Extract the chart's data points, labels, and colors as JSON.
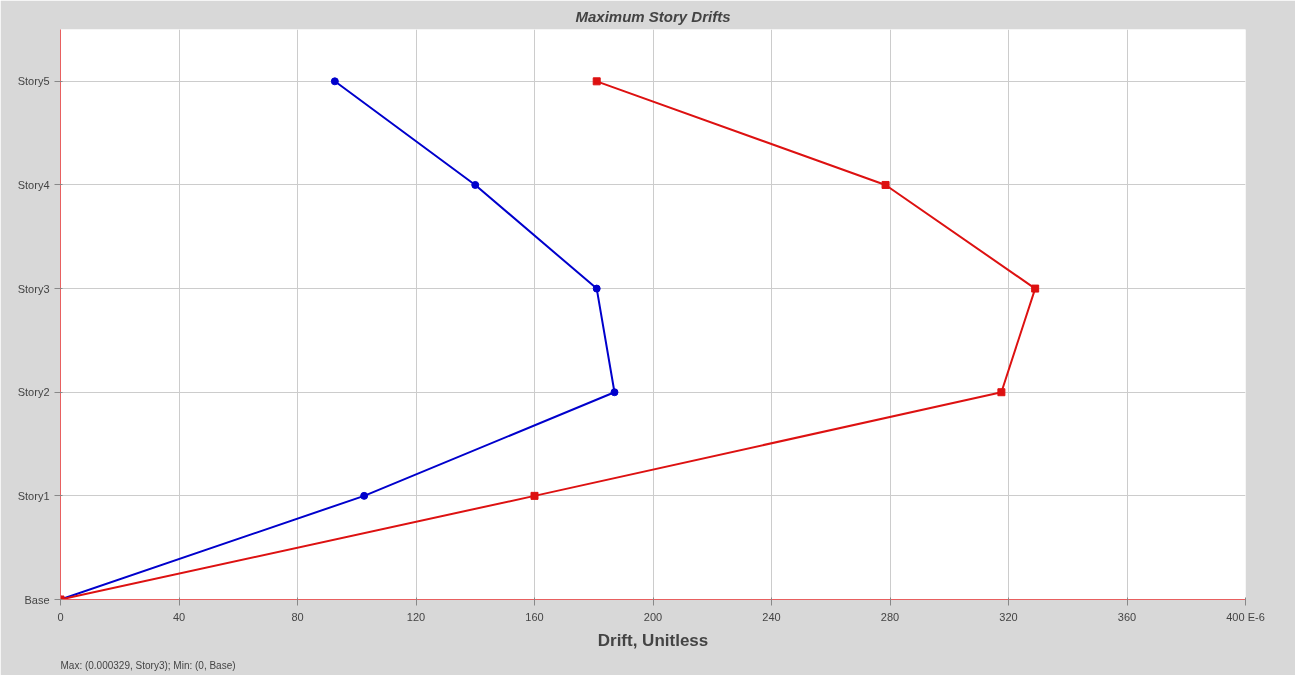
{
  "chart_data": {
    "type": "line",
    "title": "Maximum Story Drifts",
    "xlabel": "Drift, Unitless",
    "annotations": [
      "Max: (0.000329, Story3);   Min: (0, Base)"
    ],
    "orientation": "horizontal",
    "categories": [
      "Story5",
      "Story4",
      "Story3",
      "Story2",
      "Story1",
      "Base"
    ],
    "xlim": [
      0,
      400
    ],
    "xticks": [
      0,
      40,
      80,
      120,
      160,
      200,
      240,
      280,
      320,
      360,
      {
        "value": 400,
        "label": "400 E-6"
      }
    ],
    "grid": true,
    "series": [
      {
        "color": "#0000cc",
        "marker": "circle",
        "values": [
          92.6,
          140,
          181,
          187,
          102.5,
          0
        ]
      },
      {
        "color": "#dd1111",
        "marker": "square",
        "values": [
          181,
          278.5,
          329,
          317.6,
          160,
          0
        ]
      }
    ]
  }
}
